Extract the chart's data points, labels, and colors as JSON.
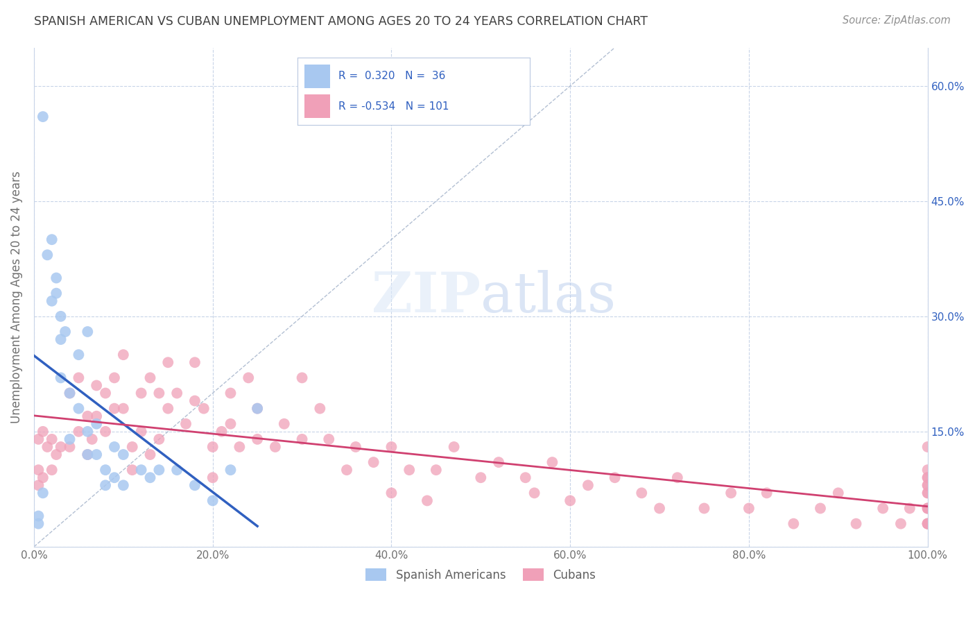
{
  "title": "SPANISH AMERICAN VS CUBAN UNEMPLOYMENT AMONG AGES 20 TO 24 YEARS CORRELATION CHART",
  "source": "Source: ZipAtlas.com",
  "ylabel": "Unemployment Among Ages 20 to 24 years",
  "xlim": [
    0.0,
    1.0
  ],
  "ylim": [
    0.0,
    0.65
  ],
  "xticks": [
    0.0,
    0.2,
    0.4,
    0.6,
    0.8,
    1.0
  ],
  "xticklabels": [
    "0.0%",
    "20.0%",
    "40.0%",
    "60.0%",
    "80.0%",
    "100.0%"
  ],
  "yticks": [
    0.0,
    0.15,
    0.3,
    0.45,
    0.6
  ],
  "yticklabels_right": [
    "",
    "15.0%",
    "30.0%",
    "45.0%",
    "60.0%"
  ],
  "r_spanish": 0.32,
  "n_spanish": 36,
  "r_cuban": -0.534,
  "n_cuban": 101,
  "spanish_color": "#a8c8f0",
  "cuban_color": "#f0a0b8",
  "spanish_line_color": "#3060c0",
  "cuban_line_color": "#d04070",
  "diagonal_color": "#a0b0c8",
  "background_color": "#ffffff",
  "grid_color": "#c8d4e8",
  "title_color": "#404040",
  "legend_R_color": "#3060c0",
  "spanish_scatter_x": [
    0.005,
    0.005,
    0.01,
    0.01,
    0.015,
    0.02,
    0.02,
    0.025,
    0.025,
    0.03,
    0.03,
    0.03,
    0.035,
    0.04,
    0.04,
    0.05,
    0.05,
    0.06,
    0.06,
    0.06,
    0.07,
    0.07,
    0.08,
    0.08,
    0.09,
    0.09,
    0.1,
    0.1,
    0.12,
    0.13,
    0.14,
    0.16,
    0.18,
    0.2,
    0.22,
    0.25
  ],
  "spanish_scatter_y": [
    0.03,
    0.04,
    0.56,
    0.07,
    0.38,
    0.4,
    0.32,
    0.33,
    0.35,
    0.27,
    0.3,
    0.22,
    0.28,
    0.2,
    0.14,
    0.18,
    0.25,
    0.15,
    0.28,
    0.12,
    0.12,
    0.16,
    0.1,
    0.08,
    0.13,
    0.09,
    0.12,
    0.08,
    0.1,
    0.09,
    0.1,
    0.1,
    0.08,
    0.06,
    0.1,
    0.18
  ],
  "cuban_scatter_x": [
    0.005,
    0.005,
    0.005,
    0.01,
    0.01,
    0.015,
    0.02,
    0.02,
    0.025,
    0.03,
    0.04,
    0.04,
    0.05,
    0.05,
    0.06,
    0.06,
    0.065,
    0.07,
    0.07,
    0.08,
    0.08,
    0.09,
    0.09,
    0.1,
    0.1,
    0.11,
    0.11,
    0.12,
    0.12,
    0.13,
    0.13,
    0.14,
    0.14,
    0.15,
    0.15,
    0.16,
    0.17,
    0.18,
    0.18,
    0.19,
    0.2,
    0.2,
    0.21,
    0.22,
    0.22,
    0.23,
    0.24,
    0.25,
    0.25,
    0.27,
    0.28,
    0.3,
    0.3,
    0.32,
    0.33,
    0.35,
    0.36,
    0.38,
    0.4,
    0.4,
    0.42,
    0.44,
    0.45,
    0.47,
    0.5,
    0.52,
    0.55,
    0.56,
    0.58,
    0.6,
    0.62,
    0.65,
    0.68,
    0.7,
    0.72,
    0.75,
    0.78,
    0.8,
    0.82,
    0.85,
    0.88,
    0.9,
    0.92,
    0.95,
    0.97,
    0.98,
    1.0,
    1.0,
    1.0,
    1.0,
    1.0,
    1.0,
    1.0,
    1.0,
    1.0,
    1.0,
    1.0,
    1.0,
    1.0,
    1.0,
    1.0
  ],
  "cuban_scatter_y": [
    0.14,
    0.1,
    0.08,
    0.15,
    0.09,
    0.13,
    0.14,
    0.1,
    0.12,
    0.13,
    0.2,
    0.13,
    0.22,
    0.15,
    0.17,
    0.12,
    0.14,
    0.21,
    0.17,
    0.2,
    0.15,
    0.22,
    0.18,
    0.25,
    0.18,
    0.13,
    0.1,
    0.2,
    0.15,
    0.22,
    0.12,
    0.2,
    0.14,
    0.24,
    0.18,
    0.2,
    0.16,
    0.24,
    0.19,
    0.18,
    0.13,
    0.09,
    0.15,
    0.2,
    0.16,
    0.13,
    0.22,
    0.18,
    0.14,
    0.13,
    0.16,
    0.22,
    0.14,
    0.18,
    0.14,
    0.1,
    0.13,
    0.11,
    0.13,
    0.07,
    0.1,
    0.06,
    0.1,
    0.13,
    0.09,
    0.11,
    0.09,
    0.07,
    0.11,
    0.06,
    0.08,
    0.09,
    0.07,
    0.05,
    0.09,
    0.05,
    0.07,
    0.05,
    0.07,
    0.03,
    0.05,
    0.07,
    0.03,
    0.05,
    0.03,
    0.05,
    0.13,
    0.09,
    0.07,
    0.05,
    0.03,
    0.09,
    0.07,
    0.05,
    0.03,
    0.1,
    0.08,
    0.05,
    0.03,
    0.08,
    0.03
  ]
}
